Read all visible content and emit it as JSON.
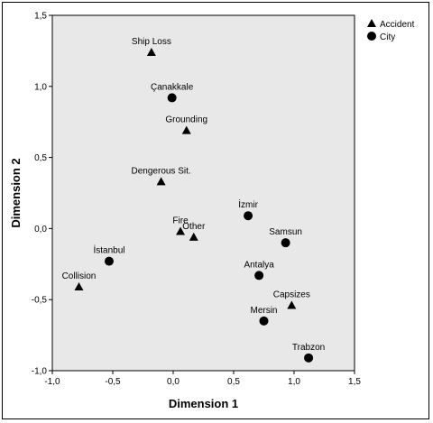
{
  "chart_data": {
    "type": "scatter",
    "xlabel": "Dimension 1",
    "ylabel": "Dimension 2",
    "xlim": [
      -1.0,
      1.5
    ],
    "ylim": [
      -1.0,
      1.5
    ],
    "xticks": [
      "-1,0",
      "-0,5",
      "0,0",
      "0,5",
      "1,0",
      "1,5"
    ],
    "yticks": [
      "1,5",
      "1,0",
      "0,5",
      "0,0",
      "-0,5",
      "-1,0"
    ],
    "xtick_values": [
      -1.0,
      -0.5,
      0.0,
      0.5,
      1.0,
      1.5
    ],
    "ytick_values": [
      1.5,
      1.0,
      0.5,
      0.0,
      -0.5,
      -1.0
    ],
    "grid": false,
    "legend_position": "top-right, outside plot area",
    "plot_background": "#e8e8e8",
    "series": [
      {
        "name": "Accident",
        "marker": "triangle",
        "points": [
          {
            "label": "Ship Loss",
            "x": -0.18,
            "y": 1.24
          },
          {
            "label": "Grounding",
            "x": 0.11,
            "y": 0.69
          },
          {
            "label": "Dengerous Sit.",
            "x": -0.1,
            "y": 0.33
          },
          {
            "label": "Fire",
            "x": 0.06,
            "y": -0.02
          },
          {
            "label": "Other",
            "x": 0.17,
            "y": -0.06
          },
          {
            "label": "Collision",
            "x": -0.78,
            "y": -0.41
          },
          {
            "label": "Capsizes",
            "x": 0.98,
            "y": -0.54
          }
        ]
      },
      {
        "name": "City",
        "marker": "circle",
        "points": [
          {
            "label": "Çanakkale",
            "x": -0.01,
            "y": 0.92
          },
          {
            "label": "İzmir",
            "x": 0.62,
            "y": 0.09
          },
          {
            "label": "Samsun",
            "x": 0.93,
            "y": -0.1
          },
          {
            "label": "İstanbul",
            "x": -0.53,
            "y": -0.23
          },
          {
            "label": "Antalya",
            "x": 0.71,
            "y": -0.33
          },
          {
            "label": "Mersin",
            "x": 0.75,
            "y": -0.65
          },
          {
            "label": "Trabzon",
            "x": 1.12,
            "y": -0.91
          }
        ]
      }
    ]
  }
}
